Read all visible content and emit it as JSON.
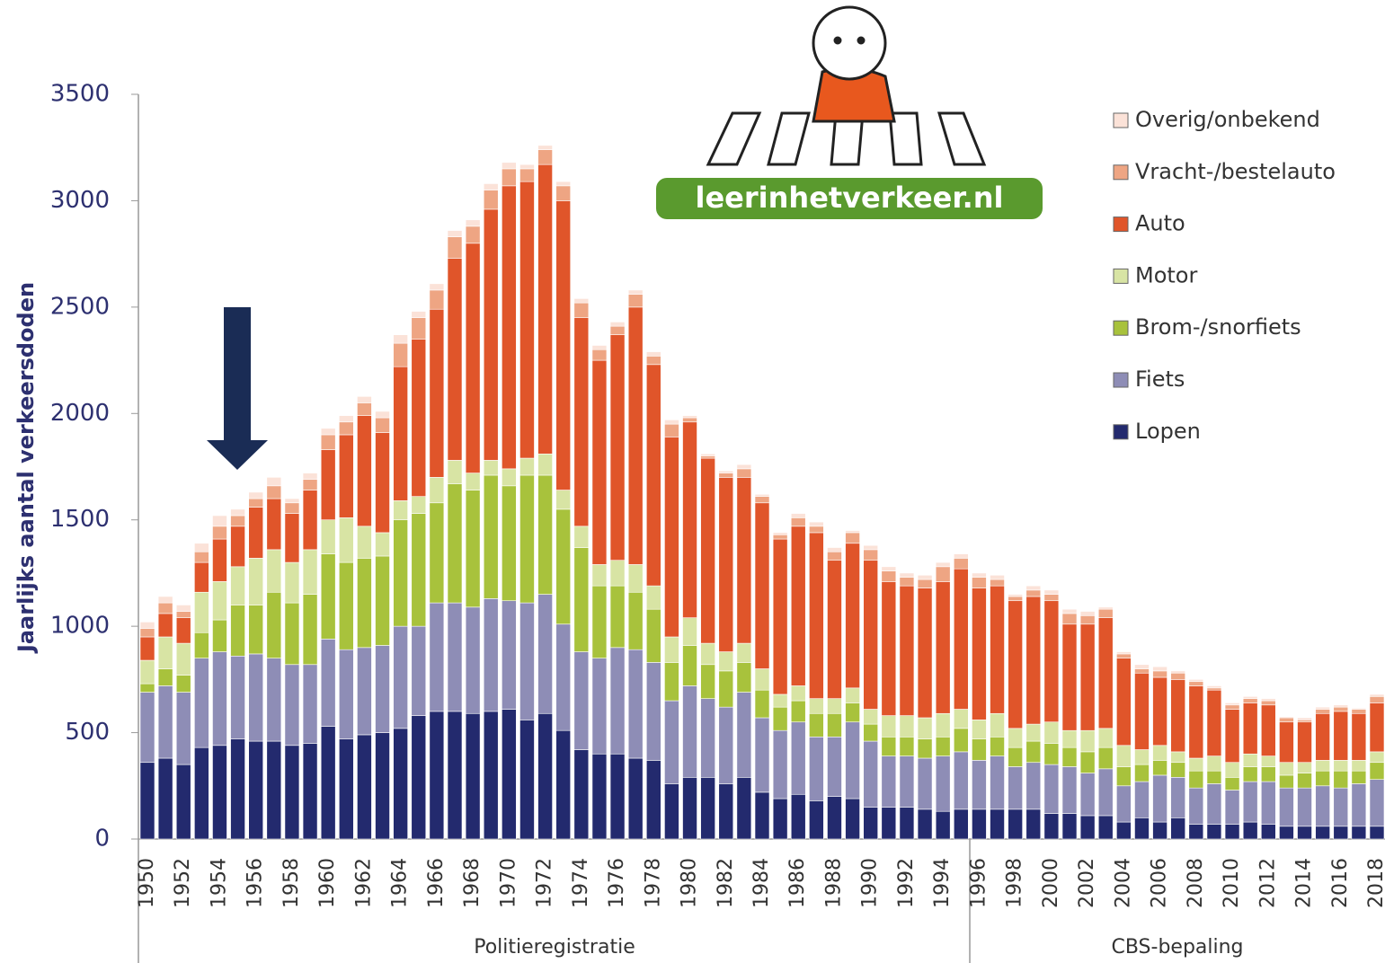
{
  "chart_data": {
    "type": "stacked_bar",
    "y_label": "Jaarlijks aantal verkeersdoden",
    "annotations": [
      "Politieregistratie",
      "CBS-bepaling"
    ],
    "logo": "leerinhetverkeer.nl",
    "categories": [
      "1950",
      null,
      "1952",
      null,
      "1954",
      null,
      "1956",
      null,
      "1958",
      null,
      "1960",
      null,
      "1962",
      null,
      "1964",
      null,
      "1966",
      null,
      "1968",
      null,
      "1970",
      null,
      "1972",
      null,
      "1974",
      null,
      "1976",
      null,
      "1978",
      null,
      "1980",
      null,
      "1982",
      null,
      "1984",
      null,
      "1986",
      null,
      "1988",
      null,
      "1990",
      null,
      "1992",
      null,
      "1994",
      null,
      "1996",
      null,
      "1998",
      null,
      "2000",
      null,
      "2002",
      null,
      "2004",
      null,
      "2006",
      null,
      "2008",
      null,
      "2010",
      null,
      "2012",
      null,
      "2014",
      null,
      "2016",
      null,
      "2018"
    ],
    "series": [
      {
        "name": "Lopen",
        "color": "#232a6e",
        "values": [
          360,
          380,
          350,
          430,
          440,
          470,
          460,
          460,
          440,
          450,
          530,
          470,
          490,
          500,
          520,
          580,
          600,
          600,
          590,
          600,
          610,
          560,
          590,
          510,
          420,
          400,
          400,
          380,
          370,
          260,
          290,
          290,
          260,
          290,
          220,
          190,
          210,
          180,
          200,
          190,
          150,
          150,
          150,
          140,
          130,
          140,
          140,
          140,
          140,
          140,
          120,
          120,
          110,
          110,
          80,
          100,
          80,
          100,
          70,
          70,
          70,
          80,
          70,
          60,
          60,
          60,
          60,
          60,
          60
        ]
      },
      {
        "name": "Fiets",
        "color": "#8e8db6",
        "values": [
          330,
          340,
          340,
          420,
          440,
          390,
          410,
          390,
          380,
          370,
          410,
          420,
          410,
          410,
          480,
          420,
          510,
          510,
          500,
          530,
          510,
          550,
          560,
          500,
          460,
          450,
          500,
          510,
          460,
          390,
          430,
          370,
          360,
          400,
          350,
          320,
          340,
          300,
          280,
          360,
          310,
          240,
          240,
          240,
          260,
          270,
          230,
          250,
          200,
          220,
          230,
          220,
          200,
          220,
          170,
          170,
          220,
          190,
          170,
          190,
          160,
          190,
          200,
          180,
          180,
          190,
          180,
          200,
          220
        ]
      },
      {
        "name": "Brom-/snorfiets",
        "color": "#a8c23c",
        "values": [
          40,
          80,
          80,
          120,
          150,
          240,
          230,
          310,
          290,
          330,
          400,
          410,
          420,
          420,
          500,
          530,
          470,
          560,
          550,
          580,
          540,
          600,
          560,
          540,
          490,
          340,
          290,
          270,
          250,
          180,
          190,
          160,
          170,
          140,
          130,
          110,
          100,
          110,
          110,
          90,
          80,
          90,
          90,
          90,
          90,
          110,
          100,
          90,
          90,
          100,
          100,
          90,
          100,
          100,
          90,
          80,
          70,
          70,
          80,
          60,
          60,
          70,
          70,
          60,
          70,
          70,
          80,
          60,
          80
        ]
      },
      {
        "name": "Motor",
        "color": "#d8e4a4",
        "values": [
          110,
          150,
          150,
          190,
          180,
          180,
          220,
          200,
          190,
          210,
          160,
          210,
          150,
          110,
          90,
          80,
          120,
          110,
          80,
          70,
          80,
          80,
          100,
          90,
          100,
          100,
          120,
          130,
          110,
          120,
          130,
          100,
          90,
          90,
          100,
          60,
          70,
          70,
          70,
          70,
          70,
          100,
          100,
          100,
          110,
          90,
          90,
          110,
          90,
          80,
          100,
          80,
          100,
          90,
          100,
          70,
          70,
          50,
          60,
          70,
          70,
          60,
          50,
          60,
          50,
          50,
          50,
          50,
          50
        ]
      },
      {
        "name": "Auto",
        "color": "#e0552a",
        "values": [
          110,
          110,
          120,
          140,
          200,
          190,
          240,
          240,
          230,
          280,
          330,
          390,
          520,
          470,
          630,
          740,
          790,
          950,
          1080,
          1180,
          1330,
          1300,
          1360,
          1360,
          980,
          960,
          1060,
          1210,
          1040,
          940,
          920,
          870,
          820,
          780,
          780,
          730,
          750,
          780,
          650,
          680,
          700,
          630,
          610,
          610,
          620,
          660,
          620,
          600,
          600,
          600,
          570,
          500,
          500,
          520,
          410,
          360,
          320,
          340,
          340,
          310,
          250,
          240,
          240,
          190,
          190,
          220,
          230,
          220,
          230
        ]
      },
      {
        "name": "Vracht-/bestelauto",
        "color": "#eea583",
        "values": [
          40,
          50,
          30,
          50,
          60,
          50,
          40,
          60,
          50,
          50,
          70,
          60,
          60,
          70,
          110,
          100,
          90,
          100,
          80,
          90,
          80,
          60,
          70,
          70,
          70,
          50,
          40,
          60,
          40,
          60,
          20,
          10,
          20,
          40,
          30,
          20,
          40,
          30,
          40,
          50,
          50,
          50,
          40,
          40,
          70,
          50,
          50,
          30,
          20,
          30,
          30,
          50,
          40,
          40,
          20,
          20,
          30,
          30,
          20,
          10,
          20,
          20,
          20,
          20,
          10,
          20,
          20,
          20,
          30
        ]
      },
      {
        "name": "Overig/onbekend",
        "color": "#fbe2d8",
        "values": [
          30,
          30,
          30,
          40,
          50,
          30,
          30,
          40,
          20,
          30,
          30,
          30,
          30,
          30,
          40,
          30,
          30,
          30,
          30,
          30,
          30,
          20,
          20,
          20,
          20,
          20,
          20,
          20,
          20,
          20,
          10,
          10,
          10,
          20,
          10,
          10,
          20,
          20,
          20,
          10,
          20,
          20,
          20,
          20,
          20,
          20,
          20,
          20,
          10,
          20,
          20,
          20,
          20,
          10,
          10,
          20,
          20,
          10,
          10,
          10,
          10,
          10,
          10,
          5,
          10,
          10,
          10,
          5,
          10
        ]
      }
    ],
    "ylim": [
      0,
      3500
    ],
    "yticks": [
      0,
      500,
      1000,
      1500,
      2000,
      2500,
      3000,
      3500
    ],
    "legend": "upper right"
  }
}
